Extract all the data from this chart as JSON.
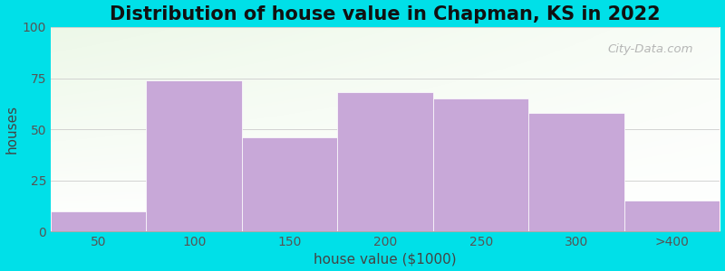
{
  "title": "Distribution of house value in Chapman, KS in 2022",
  "xlabel": "house value ($1000)",
  "ylabel": "houses",
  "tick_labels": [
    "50",
    "100",
    "150",
    "200",
    "250",
    "300",
    ">400"
  ],
  "bar_values": [
    10,
    74,
    46,
    68,
    65,
    58,
    15
  ],
  "bar_color": "#c8a8d8",
  "bar_edge_color": "#d0b8e0",
  "ylim": [
    0,
    100
  ],
  "yticks": [
    0,
    25,
    50,
    75,
    100
  ],
  "background_outer": "#00e0e8",
  "title_fontsize": 15,
  "axis_label_fontsize": 11,
  "tick_fontsize": 10,
  "watermark": "City-Data.com"
}
